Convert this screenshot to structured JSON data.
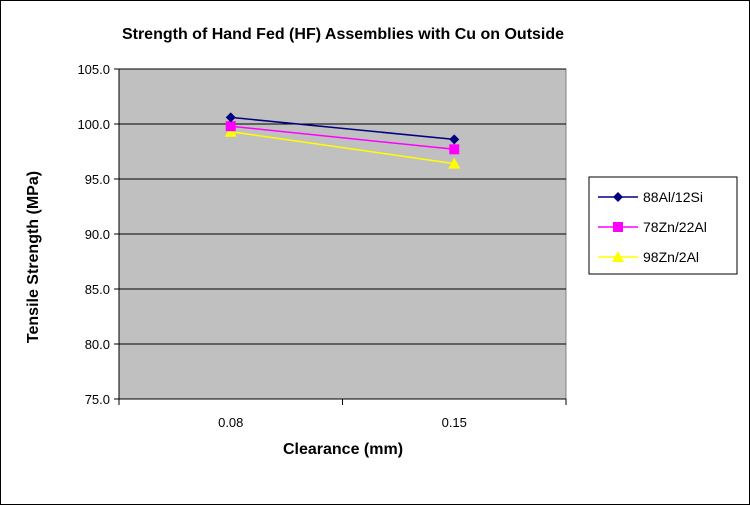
{
  "chart_data": {
    "type": "line",
    "title": "Strength of Hand Fed (HF) Assemblies  with Cu on Outside",
    "xlabel": "Clearance (mm)",
    "ylabel": "Tensile Strength (MPa)",
    "categories": [
      "0.08",
      "0.15"
    ],
    "ylim": [
      75,
      105
    ],
    "yticks": [
      75,
      80,
      85,
      90,
      95,
      100,
      105
    ],
    "ytick_labels": [
      "75.0",
      "80.0",
      "85.0",
      "90.0",
      "95.0",
      "100.0",
      "105.0"
    ],
    "grid": true,
    "plot_background": "#c0c0c0",
    "legend_position": "right",
    "series": [
      {
        "name": "88Al/12Si",
        "values": [
          100.6,
          98.6
        ],
        "color": "#000080",
        "marker": "diamond"
      },
      {
        "name": "78Zn/22Al",
        "values": [
          99.8,
          97.7
        ],
        "color": "#ff00ff",
        "marker": "square"
      },
      {
        "name": "98Zn/2Al",
        "values": [
          99.3,
          96.4
        ],
        "color": "#ffff00",
        "marker": "triangle"
      }
    ]
  }
}
